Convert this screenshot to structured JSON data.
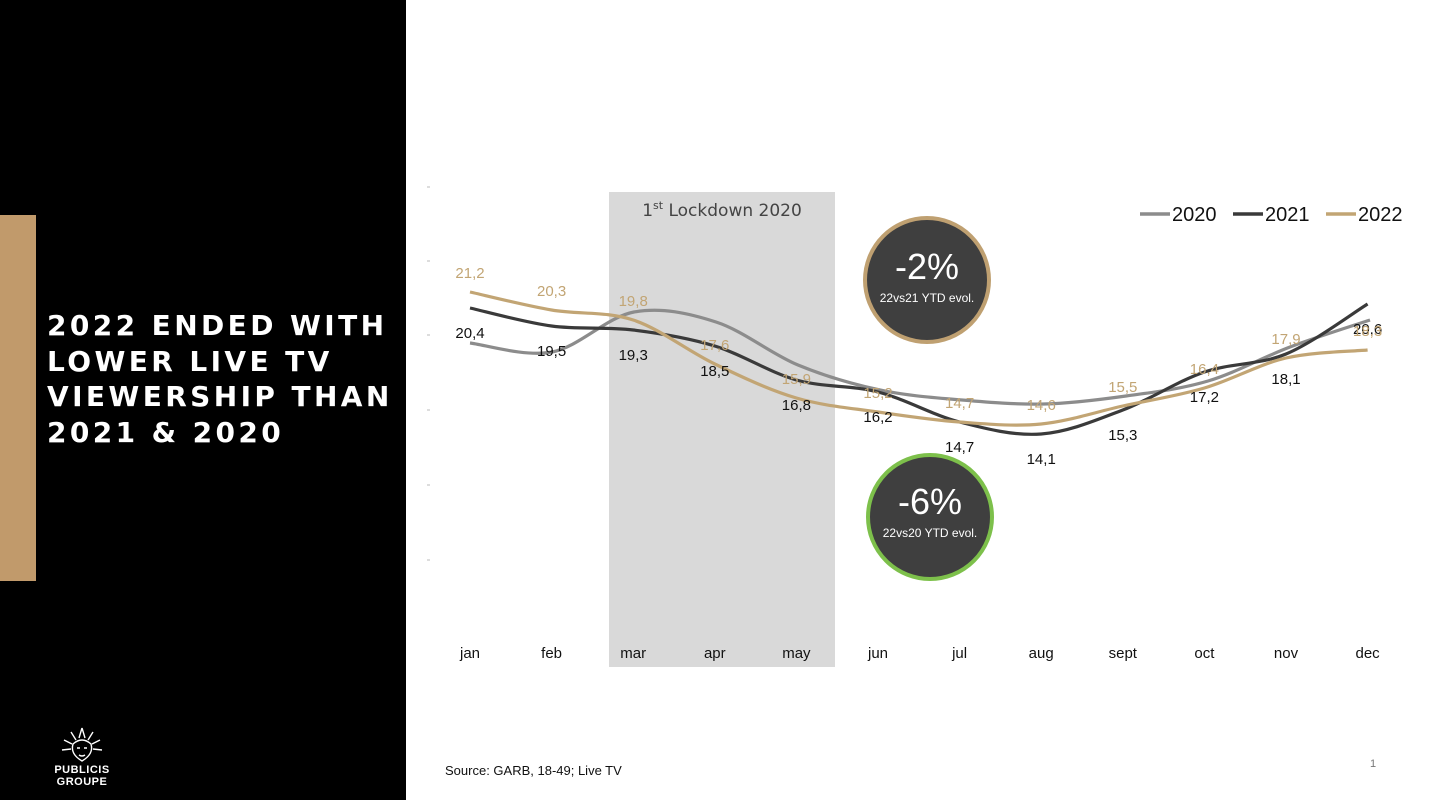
{
  "slide": {
    "title_lines": [
      "2022 ENDED WITH",
      "LOWER LIVE TV",
      "VIEWERSHIP THAN",
      "2021 & 2020"
    ],
    "logo_lines": [
      "PUBLICIS",
      "GROUPE"
    ],
    "source": "Source: GARB, 18-49; Live TV",
    "page_number": "1"
  },
  "lockdown": {
    "label_prefix": "1",
    "label_sup": "st",
    "label_rest": " Lockdown 2020",
    "from": "mar",
    "to": "may"
  },
  "badges": [
    {
      "value": "-2%",
      "caption": "22vs21 YTD evol.",
      "border_color": "#bfa071"
    },
    {
      "value": "-6%",
      "caption": "22vs20 YTD evol.",
      "border_color": "#7dc04b"
    }
  ],
  "colors": {
    "2020": "#8c8c8c",
    "2021": "#3a3a3a",
    "2022": "#c2a574",
    "lockdown_band": "#d9d9d9",
    "badge_fill": "#3f3f3f"
  },
  "chart_data": {
    "type": "line",
    "categories": [
      "jan",
      "feb",
      "mar",
      "apr",
      "may",
      "jun",
      "jul",
      "aug",
      "sept",
      "oct",
      "nov",
      "dec"
    ],
    "series": [
      {
        "name": "2020",
        "values": [
          null,
          null,
          null,
          null,
          null,
          null,
          null,
          null,
          null,
          null,
          null,
          null
        ]
      },
      {
        "name": "2021",
        "values": [
          20.4,
          19.5,
          19.3,
          18.5,
          16.8,
          16.2,
          14.7,
          14.1,
          15.3,
          17.2,
          18.1,
          20.6
        ]
      },
      {
        "name": "2022",
        "values": [
          21.2,
          20.3,
          19.8,
          17.6,
          15.9,
          15.2,
          14.7,
          14.6,
          15.5,
          16.4,
          17.9,
          18.3
        ]
      }
    ],
    "legend": "top-right",
    "grid": false
  }
}
